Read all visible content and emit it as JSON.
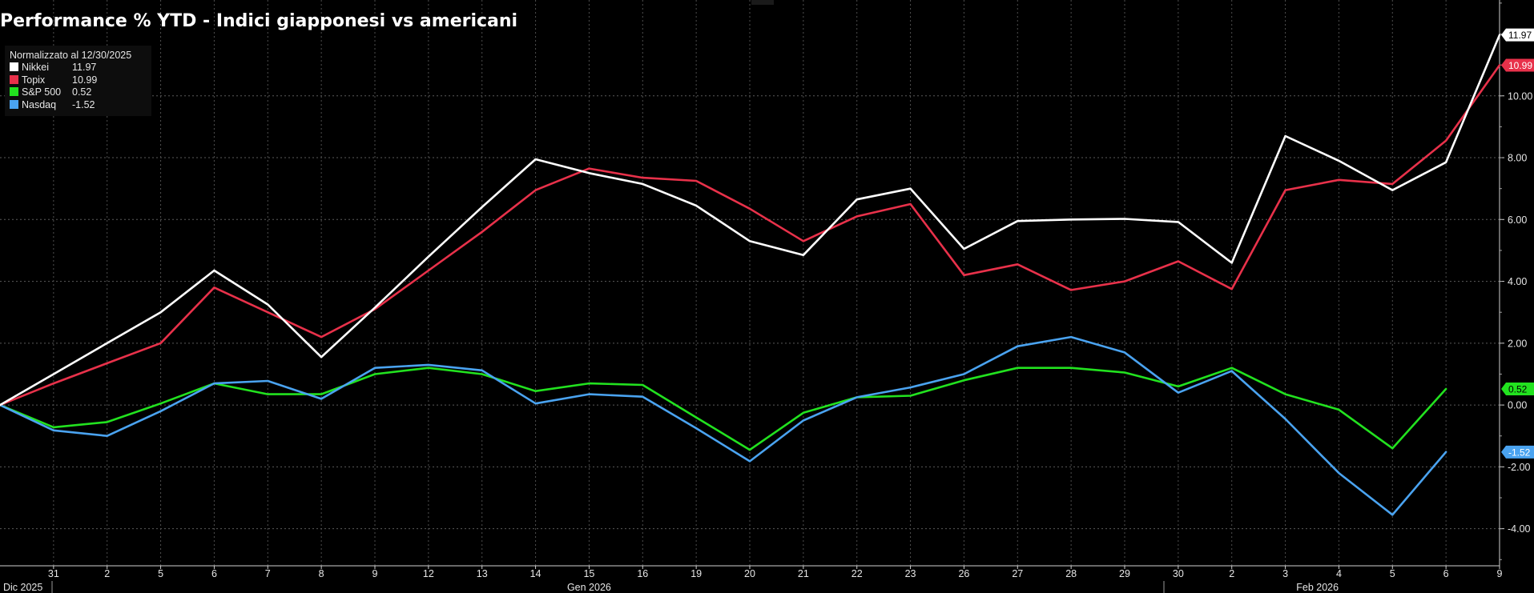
{
  "title": "Performance % YTD - Indici giapponesi vs americani",
  "legend": {
    "note": "Normalizzato al 12/30/2025",
    "items": [
      {
        "name": "Nikkei",
        "value": "11.97",
        "color": "#ffffff"
      },
      {
        "name": "Topix",
        "value": "10.99",
        "color": "#e8314a"
      },
      {
        "name": "S&P 500",
        "value": "0.52",
        "color": "#22e21f"
      },
      {
        "name": "Nasdaq",
        "value": "-1.52",
        "color": "#4aa3f0"
      }
    ]
  },
  "chart_data": {
    "type": "line",
    "title": "Performance % YTD - Indici giapponesi vs americani",
    "x": [
      "30",
      "31",
      "2",
      "5",
      "6",
      "7",
      "8",
      "9",
      "12",
      "13",
      "14",
      "15",
      "16",
      "19",
      "20",
      "21",
      "22",
      "23",
      "26",
      "27",
      "28",
      "29",
      "30",
      "2",
      "3",
      "4",
      "5",
      "6",
      "9"
    ],
    "x_tick_labels": [
      "31",
      "2",
      "5",
      "6",
      "7",
      "8",
      "9",
      "12",
      "13",
      "14",
      "15",
      "16",
      "19",
      "20",
      "21",
      "22",
      "23",
      "26",
      "27",
      "28",
      "29",
      "30",
      "2",
      "3",
      "4",
      "5",
      "6",
      "9"
    ],
    "month_labels": [
      "Dic 2025",
      "Gen 2026",
      "Feb 2026"
    ],
    "y_tick_labels": [
      "-4.00",
      "-2.00",
      "0.00",
      "2.00",
      "4.00",
      "6.00",
      "8.00",
      "10.00"
    ],
    "ylim": [
      -5.2,
      13.1
    ],
    "grid": true,
    "legend_position": "top-left",
    "series": [
      {
        "name": "Nikkei",
        "color": "#ffffff",
        "last_label": "11.97",
        "values": [
          0,
          1.0,
          2.0,
          3.0,
          4.35,
          3.25,
          1.55,
          3.15,
          4.8,
          6.4,
          7.95,
          7.5,
          7.15,
          6.45,
          5.3,
          4.85,
          6.65,
          7.0,
          5.05,
          5.95,
          6.0,
          6.02,
          5.92,
          4.6,
          8.7,
          7.9,
          6.95,
          7.85,
          11.97
        ]
      },
      {
        "name": "Topix",
        "color": "#e8314a",
        "last_label": "10.99",
        "values": [
          0,
          0.7,
          1.35,
          2.0,
          3.8,
          3.0,
          2.2,
          3.1,
          4.35,
          5.6,
          6.95,
          7.65,
          7.35,
          7.25,
          6.35,
          5.3,
          6.1,
          6.5,
          4.2,
          4.55,
          3.72,
          4.0,
          4.65,
          3.75,
          6.95,
          7.28,
          7.15,
          8.55,
          10.99
        ]
      },
      {
        "name": "S&P 500",
        "color": "#22e21f",
        "last_label": "0.52",
        "values": [
          0,
          -0.72,
          -0.55,
          0.05,
          0.7,
          0.35,
          0.35,
          1.0,
          1.2,
          1.0,
          0.45,
          0.7,
          0.65,
          -0.4,
          -1.45,
          -0.25,
          0.25,
          0.3,
          0.8,
          1.2,
          1.2,
          1.05,
          0.6,
          1.2,
          0.35,
          -0.15,
          -1.4,
          0.52,
          null
        ]
      },
      {
        "name": "Nasdaq",
        "color": "#4aa3f0",
        "last_label": "-1.52",
        "values": [
          0,
          -0.82,
          -1.0,
          -0.2,
          0.7,
          0.78,
          0.2,
          1.2,
          1.3,
          1.12,
          0.05,
          0.35,
          0.27,
          -0.75,
          -1.82,
          -0.5,
          0.25,
          0.57,
          1.0,
          1.9,
          2.2,
          1.7,
          0.4,
          1.1,
          -0.45,
          -2.2,
          -3.55,
          -1.52,
          null
        ]
      }
    ]
  }
}
